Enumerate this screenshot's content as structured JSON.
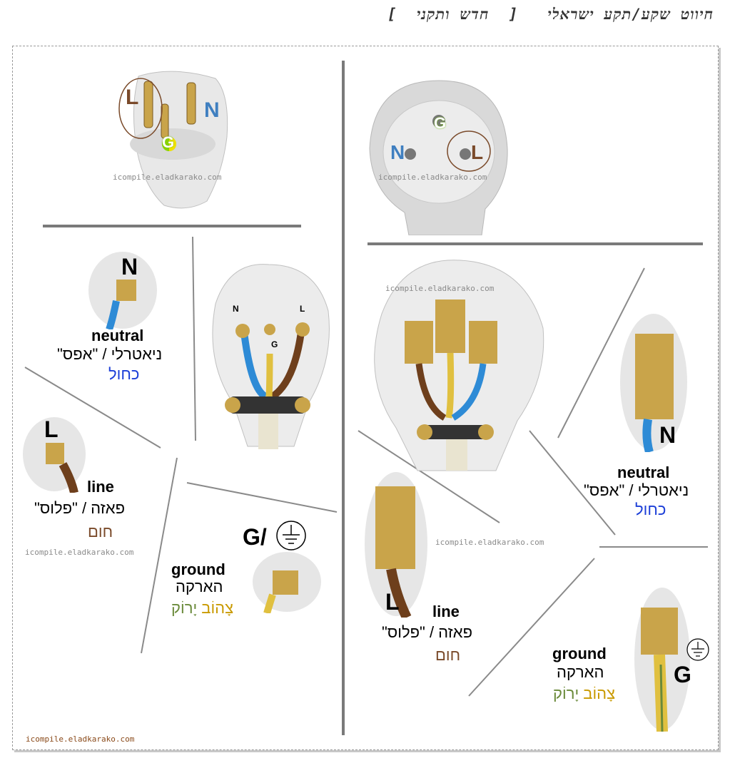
{
  "title": "חיווט שקע/תקע ישראלי   [  חדש ותקני  ]",
  "watermark": "icompile.eladkarako.com",
  "plug_top": {
    "L": "L",
    "N": "N",
    "G": "G"
  },
  "socket_top": {
    "N": "N",
    "L": "L",
    "G": "G"
  },
  "plug_inside": {
    "N": "N",
    "L": "L",
    "G": "G"
  },
  "left": {
    "neutral": {
      "letter": "N",
      "en": "neutral",
      "he": "ניאטרלי / \"אפס\"",
      "color": "כחול"
    },
    "line": {
      "letter": "L",
      "en": "line",
      "he": "פאזה / \"פלוס\"",
      "color": "חום"
    },
    "ground": {
      "letter": "G/",
      "en": "ground",
      "he": "הארקה",
      "color_yellow": "צָהוֹב",
      "color_green": "יָרוֹק"
    }
  },
  "right": {
    "neutral": {
      "letter": "N",
      "en": "neutral",
      "he": "ניאטרלי / \"אפס\"",
      "color": "כחול"
    },
    "line": {
      "letter": "L",
      "en": "line",
      "he": "פאזה / \"פלוס\"",
      "color": "חום"
    },
    "ground": {
      "letter": "G",
      "en": "ground",
      "he": "הארקה",
      "color_yellow": "צָהוֹב",
      "color_green": "יָרוֹק"
    }
  },
  "colors": {
    "neutral_blue": "#1c3fd8",
    "line_brown": "#7a4a2a",
    "ground_yellow": "#c99a00",
    "ground_green": "#6a8a3a",
    "N_label": "#3f7fc0",
    "L_label": "#7a4a2a"
  }
}
